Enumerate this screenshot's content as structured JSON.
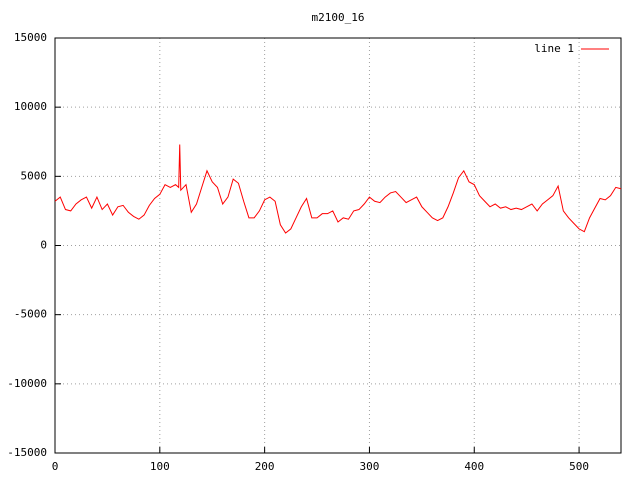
{
  "chart_data": {
    "type": "line",
    "title": "m2100_16",
    "x": [
      0,
      5,
      10,
      15,
      20,
      25,
      30,
      35,
      40,
      45,
      50,
      55,
      60,
      65,
      70,
      75,
      80,
      85,
      90,
      95,
      100,
      105,
      110,
      115,
      118,
      119,
      120,
      125,
      130,
      135,
      140,
      145,
      150,
      155,
      160,
      165,
      170,
      175,
      180,
      185,
      190,
      195,
      200,
      205,
      210,
      215,
      220,
      225,
      230,
      235,
      240,
      245,
      250,
      255,
      260,
      265,
      270,
      275,
      280,
      285,
      290,
      295,
      300,
      305,
      310,
      315,
      320,
      325,
      330,
      335,
      340,
      345,
      350,
      355,
      360,
      365,
      370,
      375,
      380,
      385,
      390,
      395,
      400,
      405,
      410,
      415,
      420,
      425,
      430,
      435,
      440,
      445,
      450,
      455,
      460,
      465,
      470,
      475,
      480,
      485,
      490,
      495,
      500,
      505,
      510,
      515,
      520,
      525,
      530,
      535,
      540
    ],
    "series": [
      {
        "name": "line 1",
        "color": "#ff0000",
        "values": [
          3200,
          3500,
          2600,
          2500,
          3000,
          3300,
          3500,
          2700,
          3500,
          2600,
          3000,
          2200,
          2800,
          2900,
          2400,
          2100,
          1900,
          2200,
          2900,
          3400,
          3700,
          4400,
          4200,
          4400,
          4200,
          7300,
          4000,
          4400,
          2400,
          3000,
          4200,
          5400,
          4600,
          4200,
          3000,
          3500,
          4800,
          4500,
          3200,
          2000,
          2000,
          2500,
          3300,
          3500,
          3200,
          1500,
          900,
          1200,
          2000,
          2800,
          3400,
          2000,
          2000,
          2300,
          2300,
          2500,
          1700,
          2000,
          1900,
          2500,
          2600,
          3000,
          3500,
          3200,
          3100,
          3500,
          3800,
          3900,
          3500,
          3100,
          3300,
          3500,
          2800,
          2400,
          2000,
          1800,
          2000,
          2800,
          3800,
          4900,
          5400,
          4600,
          4400,
          3600,
          3200,
          2800,
          3000,
          2700,
          2800,
          2600,
          2700,
          2600,
          2800,
          3000,
          2500,
          3000,
          3300,
          3600,
          4300,
          2500,
          2000,
          1600,
          1200,
          1000,
          2000,
          2700,
          3400,
          3300,
          3600,
          4200,
          4100
        ]
      }
    ],
    "xlim": [
      0,
      540
    ],
    "xticks": [
      0,
      100,
      200,
      300,
      400,
      500
    ],
    "ylim": [
      -15000,
      15000
    ],
    "yticks": [
      -15000,
      -10000,
      -5000,
      0,
      5000,
      10000,
      15000
    ],
    "grid": true,
    "legend": "top-right"
  }
}
